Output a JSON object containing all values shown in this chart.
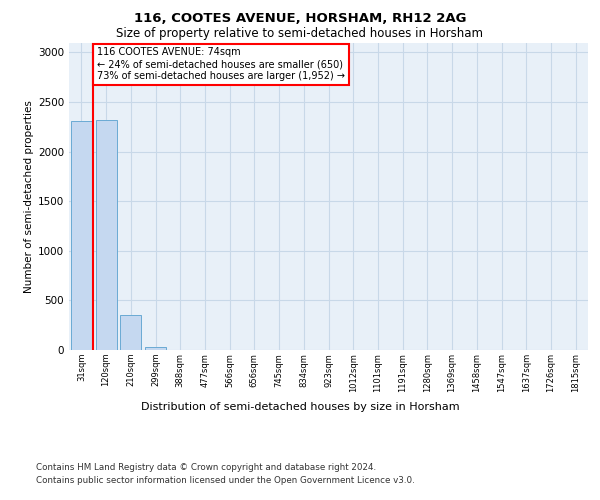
{
  "title1": "116, COOTES AVENUE, HORSHAM, RH12 2AG",
  "title2": "Size of property relative to semi-detached houses in Horsham",
  "xlabel": "Distribution of semi-detached houses by size in Horsham",
  "ylabel": "Number of semi-detached properties",
  "annotation_title": "116 COOTES AVENUE: 74sqm",
  "annotation_line1": "← 24% of semi-detached houses are smaller (650)",
  "annotation_line2": "73% of semi-detached houses are larger (1,952) →",
  "footnote1": "Contains HM Land Registry data © Crown copyright and database right 2024.",
  "footnote2": "Contains public sector information licensed under the Open Government Licence v3.0.",
  "categories": [
    "31sqm",
    "120sqm",
    "210sqm",
    "299sqm",
    "388sqm",
    "477sqm",
    "566sqm",
    "656sqm",
    "745sqm",
    "834sqm",
    "923sqm",
    "1012sqm",
    "1101sqm",
    "1191sqm",
    "1280sqm",
    "1369sqm",
    "1458sqm",
    "1547sqm",
    "1637sqm",
    "1726sqm",
    "1815sqm"
  ],
  "values": [
    2310,
    2320,
    350,
    30,
    0,
    0,
    0,
    0,
    0,
    0,
    0,
    0,
    0,
    0,
    0,
    0,
    0,
    0,
    0,
    0,
    0
  ],
  "bar_color": "#c5d8f0",
  "bar_edge_color": "#6aaad4",
  "red_line_color": "red",
  "red_line_x": 0.48,
  "ylim": [
    0,
    3100
  ],
  "yticks": [
    0,
    500,
    1000,
    1500,
    2000,
    2500,
    3000
  ],
  "grid_color": "#c8d8e8",
  "bg_color": "#e8f0f8",
  "annotation_box_color": "white",
  "annotation_box_edge": "red"
}
